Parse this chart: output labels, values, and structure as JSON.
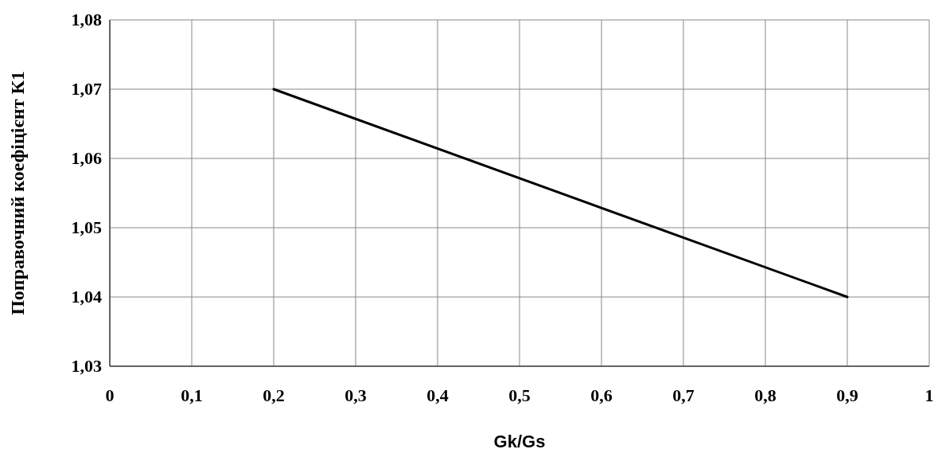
{
  "chart_data": {
    "type": "line",
    "xlabel": "Gk/Gs",
    "ylabel": "Поправочний коефіцієнт  К1",
    "x": [
      0.2,
      0.9
    ],
    "series": [
      {
        "color": "#000000",
        "values": [
          1.07,
          1.04
        ]
      }
    ],
    "xlim": [
      0,
      1
    ],
    "xticks": [
      0,
      {
        "value": 0.1,
        "label": "0,1"
      },
      {
        "value": 0.2,
        "label": "0,2"
      },
      {
        "value": 0.3,
        "label": "0,3"
      },
      {
        "value": 0.4,
        "label": "0,4"
      },
      {
        "value": 0.5,
        "label": "0,5"
      },
      {
        "value": 0.6,
        "label": "0,6"
      },
      {
        "value": 0.7,
        "label": "0,7"
      },
      {
        "value": 0.8,
        "label": "0,8"
      },
      {
        "value": 0.9,
        "label": "0,9"
      },
      1
    ],
    "ylim": [
      1.03,
      1.08
    ],
    "yticks": [
      {
        "value": 1.03,
        "label": "1,03"
      },
      {
        "value": 1.04,
        "label": "1,04"
      },
      {
        "value": 1.05,
        "label": "1,05"
      },
      {
        "value": 1.06,
        "label": "1,06"
      },
      {
        "value": 1.07,
        "label": "1,07"
      },
      {
        "value": 1.08,
        "label": "1,08"
      }
    ],
    "grid": true,
    "marker": "none",
    "line_style": "solid"
  }
}
